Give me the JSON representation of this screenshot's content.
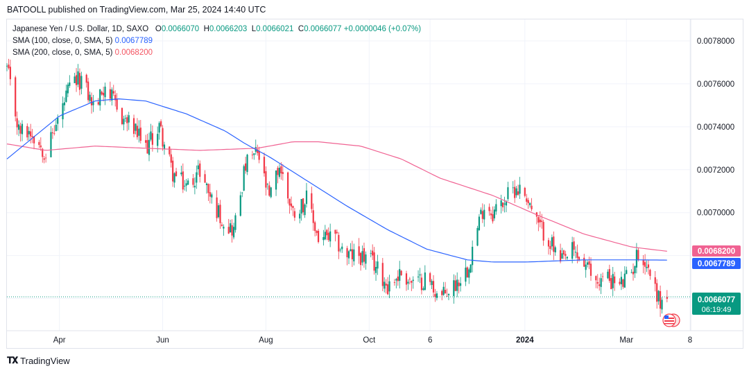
{
  "publisher": "BATOOLL published on TradingView.com, Mar 25, 2024 14:40 UTC",
  "footer": {
    "brand": "TradingView"
  },
  "legend": {
    "symbol": "Japanese Yen / U.S. Dollar, 1D, SAXO",
    "ohlc": [
      {
        "label": "O",
        "value": "0.0066070"
      },
      {
        "label": "H",
        "value": "0.0066203"
      },
      {
        "label": "L",
        "value": "0.0066021"
      },
      {
        "label": "C",
        "value": "0.0066077"
      }
    ],
    "change": "+0.0000046 (+0.07%)",
    "sma100_label": "SMA (100, close, 0, SMA, 5)",
    "sma100_value": "0.0067789",
    "sma200_label": "SMA (200, close, 0, SMA, 5)",
    "sma200_value": "0.0068200"
  },
  "badges": {
    "sma200": "0.0068200",
    "sma100": "0.0067789",
    "last_price": "0.0066077",
    "countdown": "06:19:49"
  },
  "colors": {
    "up": "#089981",
    "down": "#f23645",
    "sma100": "#2962ff",
    "sma200": "#f06292",
    "grid": "#f0f3fa",
    "text": "#131722"
  },
  "chart_data": {
    "type": "candlestick",
    "title": "Japanese Yen / U.S. Dollar, 1D, SAXO",
    "ylim": [
      0.00645,
      0.0079
    ],
    "y_ticks": [
      "0.0078000",
      "0.0076000",
      "0.0074000",
      "0.0072000",
      "0.0070000"
    ],
    "x_ticks": [
      "Apr",
      "Jun",
      "Aug",
      "Oct",
      "6",
      "2024",
      "Mar",
      "8"
    ],
    "x_range": [
      "2023-03-01",
      "2024-04-08"
    ],
    "price_path": [
      [
        "2023-03-01",
        0.00767
      ],
      [
        "2023-03-08",
        0.00738
      ],
      [
        "2023-03-15",
        0.00738
      ],
      [
        "2023-03-24",
        0.00728
      ],
      [
        "2023-04-01",
        0.00745
      ],
      [
        "2023-04-08",
        0.0076
      ],
      [
        "2023-04-14",
        0.00762
      ],
      [
        "2023-04-22",
        0.00748
      ],
      [
        "2023-04-28",
        0.0076
      ],
      [
        "2023-05-06",
        0.00746
      ],
      [
        "2023-05-14",
        0.0074
      ],
      [
        "2023-05-22",
        0.0073
      ],
      [
        "2023-05-30",
        0.0074
      ],
      [
        "2023-06-07",
        0.00718
      ],
      [
        "2023-06-15",
        0.00712
      ],
      [
        "2023-06-23",
        0.0072
      ],
      [
        "2023-07-01",
        0.00704
      ],
      [
        "2023-07-08",
        0.00695
      ],
      [
        "2023-07-13",
        0.00692
      ],
      [
        "2023-07-20",
        0.00722
      ],
      [
        "2023-07-27",
        0.00728
      ],
      [
        "2023-08-03",
        0.00706
      ],
      [
        "2023-08-09",
        0.00722
      ],
      [
        "2023-08-17",
        0.007
      ],
      [
        "2023-08-25",
        0.00706
      ],
      [
        "2023-09-01",
        0.00688
      ],
      [
        "2023-09-10",
        0.00688
      ],
      [
        "2023-09-18",
        0.0068
      ],
      [
        "2023-09-26",
        0.0068
      ],
      [
        "2023-10-04",
        0.00676
      ],
      [
        "2023-10-12",
        0.00666
      ],
      [
        "2023-10-20",
        0.00672
      ],
      [
        "2023-10-28",
        0.00666
      ],
      [
        "2023-11-04",
        0.0067
      ],
      [
        "2023-11-12",
        0.0066
      ],
      [
        "2023-11-20",
        0.00666
      ],
      [
        "2023-11-28",
        0.00674
      ],
      [
        "2023-12-05",
        0.00696
      ],
      [
        "2023-12-08",
        0.00704
      ],
      [
        "2023-12-13",
        0.007
      ],
      [
        "2023-12-20",
        0.00706
      ],
      [
        "2023-12-27",
        0.00712
      ],
      [
        "2024-01-02",
        0.00708
      ],
      [
        "2024-01-08",
        0.00695
      ],
      [
        "2024-01-15",
        0.00688
      ],
      [
        "2024-01-22",
        0.00676
      ],
      [
        "2024-01-29",
        0.00682
      ],
      [
        "2024-02-05",
        0.00676
      ],
      [
        "2024-02-12",
        0.00668
      ],
      [
        "2024-02-19",
        0.0067
      ],
      [
        "2024-02-26",
        0.00666
      ],
      [
        "2024-03-04",
        0.00672
      ],
      [
        "2024-03-08",
        0.00682
      ],
      [
        "2024-03-14",
        0.00674
      ],
      [
        "2024-03-21",
        0.00658
      ],
      [
        "2024-03-25",
        0.0066077
      ]
    ],
    "sma100_path": [
      [
        "2023-03-01",
        0.00725
      ],
      [
        "2023-04-01",
        0.00745
      ],
      [
        "2023-04-22",
        0.00752
      ],
      [
        "2023-05-06",
        0.00753
      ],
      [
        "2023-05-22",
        0.00752
      ],
      [
        "2023-06-15",
        0.00746
      ],
      [
        "2023-07-08",
        0.00738
      ],
      [
        "2023-07-20",
        0.00732
      ],
      [
        "2023-08-03",
        0.00726
      ],
      [
        "2023-08-25",
        0.00715
      ],
      [
        "2023-09-18",
        0.00703
      ],
      [
        "2023-10-12",
        0.00692
      ],
      [
        "2023-11-04",
        0.00683
      ],
      [
        "2023-11-28",
        0.00678
      ],
      [
        "2023-12-13",
        0.00677
      ],
      [
        "2024-01-02",
        0.00677
      ],
      [
        "2024-02-05",
        0.00678
      ],
      [
        "2024-03-08",
        0.00678
      ],
      [
        "2024-03-25",
        0.0067789
      ]
    ],
    "sma200_path": [
      [
        "2023-03-01",
        0.00732
      ],
      [
        "2023-03-24",
        0.00729
      ],
      [
        "2023-04-22",
        0.00731
      ],
      [
        "2023-05-22",
        0.0073
      ],
      [
        "2023-06-23",
        0.00729
      ],
      [
        "2023-07-27",
        0.0073
      ],
      [
        "2023-08-17",
        0.00733
      ],
      [
        "2023-09-01",
        0.00733
      ],
      [
        "2023-09-26",
        0.00731
      ],
      [
        "2023-10-20",
        0.00725
      ],
      [
        "2023-11-12",
        0.00716
      ],
      [
        "2023-12-13",
        0.00708
      ],
      [
        "2024-01-08",
        0.00699
      ],
      [
        "2024-02-05",
        0.0069
      ],
      [
        "2024-03-04",
        0.00684
      ],
      [
        "2024-03-25",
        0.00682
      ]
    ],
    "last_price": 0.0066077,
    "grid": true
  }
}
